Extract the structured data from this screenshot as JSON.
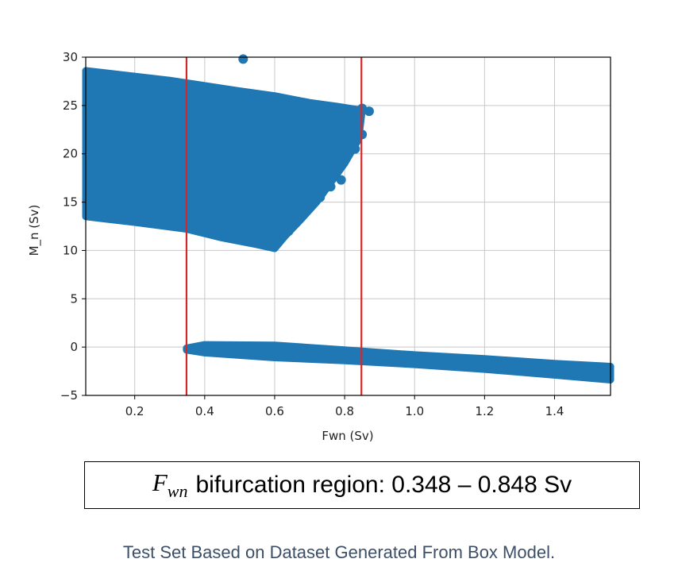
{
  "chart_data": {
    "type": "scatter",
    "xlabel": "Fwn (Sv)",
    "ylabel": "M_n (Sv)",
    "xlim": [
      0.06,
      1.56
    ],
    "ylim": [
      -5,
      30
    ],
    "xticks": [
      "0.2",
      "0.4",
      "0.6",
      "0.8",
      "1.0",
      "1.2",
      "1.4"
    ],
    "xtick_values": [
      0.2,
      0.4,
      0.6,
      0.8,
      1.0,
      1.2,
      1.4
    ],
    "yticks": [
      "−5",
      "0",
      "5",
      "10",
      "15",
      "20",
      "25",
      "30"
    ],
    "ytick_values": [
      -5,
      0,
      5,
      10,
      15,
      20,
      25,
      30
    ],
    "grid": true,
    "marker_color": "#1f77b4",
    "vline_color": "#d62728",
    "vlines": [
      0.348,
      0.848
    ],
    "upper_branch": {
      "top_edge": [
        [
          0.06,
          28.6
        ],
        [
          0.3,
          27.6
        ],
        [
          0.5,
          26.5
        ],
        [
          0.6,
          26.0
        ],
        [
          0.7,
          25.3
        ],
        [
          0.78,
          24.9
        ],
        [
          0.85,
          24.5
        ]
      ],
      "bottom_edge": [
        [
          0.06,
          13.5
        ],
        [
          0.2,
          12.9
        ],
        [
          0.35,
          12.2
        ],
        [
          0.45,
          11.3
        ],
        [
          0.55,
          10.6
        ],
        [
          0.6,
          10.2
        ],
        [
          0.63,
          11.5
        ],
        [
          0.67,
          13.0
        ],
        [
          0.72,
          15.0
        ],
        [
          0.76,
          17.0
        ],
        [
          0.8,
          19.0
        ],
        [
          0.84,
          21.5
        ],
        [
          0.85,
          24.5
        ]
      ],
      "edge_points": [
        [
          0.61,
          11.0
        ],
        [
          0.64,
          12.0
        ],
        [
          0.67,
          13.3
        ],
        [
          0.7,
          14.5
        ],
        [
          0.73,
          15.5
        ],
        [
          0.76,
          16.6
        ],
        [
          0.79,
          17.3
        ],
        [
          0.8,
          19.3
        ],
        [
          0.83,
          20.5
        ],
        [
          0.85,
          22.0
        ],
        [
          0.81,
          22.8
        ],
        [
          0.84,
          23.5
        ],
        [
          0.85,
          24.7
        ],
        [
          0.87,
          24.4
        ],
        [
          0.82,
          24.2
        ]
      ],
      "outlier": [
        0.51,
        29.8
      ]
    },
    "lower_branch": {
      "top_edge": [
        [
          0.348,
          -0.1
        ],
        [
          0.4,
          0.25
        ],
        [
          0.6,
          0.2
        ],
        [
          0.8,
          -0.3
        ],
        [
          1.0,
          -0.8
        ],
        [
          1.2,
          -1.2
        ],
        [
          1.4,
          -1.7
        ],
        [
          1.56,
          -2.0
        ]
      ],
      "bottom_edge": [
        [
          0.348,
          -0.3
        ],
        [
          0.4,
          -0.6
        ],
        [
          0.6,
          -1.1
        ],
        [
          0.8,
          -1.4
        ],
        [
          1.0,
          -1.8
        ],
        [
          1.2,
          -2.3
        ],
        [
          1.4,
          -2.9
        ],
        [
          1.56,
          -3.4
        ]
      ]
    }
  },
  "annotation": {
    "symbol_main": "F",
    "symbol_sub": "wn",
    "text": "bifurcation region: 0.348 – 0.848 Sv"
  },
  "caption": "Test Set Based on Dataset Generated From Box Model."
}
